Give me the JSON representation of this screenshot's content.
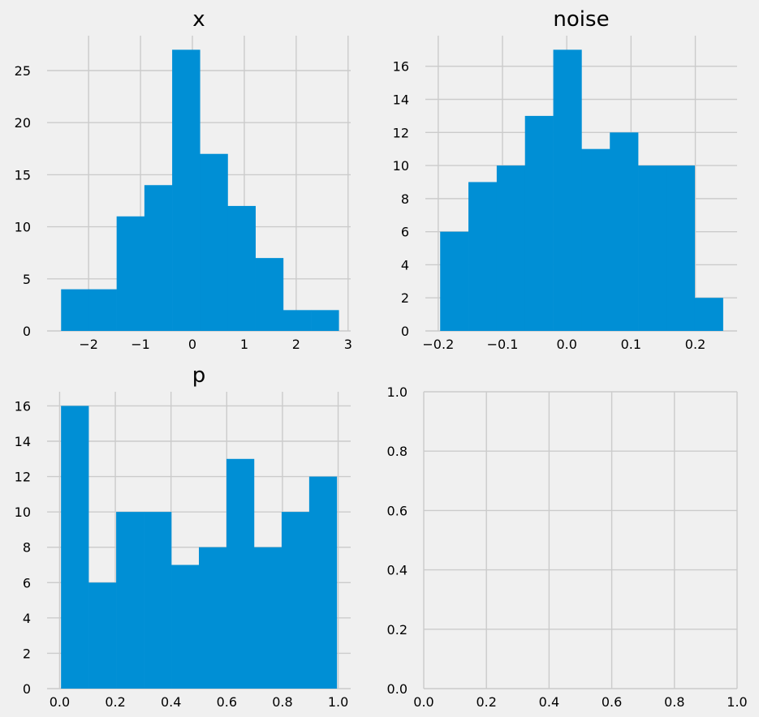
{
  "colors": {
    "background": "#f0f0f0",
    "bar": "#008fd5",
    "grid": "#cbcbcb"
  },
  "chart_data": [
    {
      "type": "bar",
      "title": "x",
      "bin_edges": [
        -2.53,
        -1.995,
        -1.46,
        -0.925,
        -0.39,
        0.145,
        0.68,
        1.215,
        1.75,
        2.285,
        2.82
      ],
      "values": [
        4,
        4,
        11,
        14,
        27,
        17,
        12,
        7,
        2,
        2
      ],
      "xlim": [
        -2.8,
        3.05
      ],
      "ylim": [
        0,
        28.35
      ],
      "xticks": [
        -2,
        -1,
        0,
        1,
        2,
        3
      ],
      "xtick_labels": [
        "−2",
        "−1",
        "0",
        "1",
        "2",
        "3"
      ],
      "yticks": [
        0,
        5,
        10,
        15,
        20,
        25
      ],
      "ytick_labels": [
        "0",
        "5",
        "10",
        "15",
        "20",
        "25"
      ],
      "grid": true
    },
    {
      "type": "bar",
      "title": "noise",
      "bin_edges": [
        -0.197,
        -0.153,
        -0.109,
        -0.065,
        -0.021,
        0.023,
        0.067,
        0.111,
        0.155,
        0.199,
        0.243
      ],
      "values": [
        6,
        9,
        10,
        13,
        17,
        11,
        12,
        10,
        10,
        2
      ],
      "xlim": [
        -0.22,
        0.265
      ],
      "ylim": [
        0,
        17.85
      ],
      "xticks": [
        -0.2,
        -0.1,
        0.0,
        0.1,
        0.2
      ],
      "xtick_labels": [
        "−0.2",
        "−0.1",
        "0.0",
        "0.1",
        "0.2"
      ],
      "yticks": [
        0,
        2,
        4,
        6,
        8,
        10,
        12,
        14,
        16
      ],
      "ytick_labels": [
        "0",
        "2",
        "4",
        "6",
        "8",
        "10",
        "12",
        "14",
        "16"
      ],
      "grid": true
    },
    {
      "type": "bar",
      "title": "p",
      "bin_edges": [
        0.005,
        0.104,
        0.203,
        0.302,
        0.401,
        0.5,
        0.599,
        0.698,
        0.797,
        0.896,
        0.995
      ],
      "values": [
        16,
        6,
        10,
        10,
        7,
        8,
        13,
        8,
        10,
        12
      ],
      "xlim": [
        -0.045,
        1.045
      ],
      "ylim": [
        0,
        16.8
      ],
      "xticks": [
        0.0,
        0.2,
        0.4,
        0.6,
        0.8,
        1.0
      ],
      "xtick_labels": [
        "0.0",
        "0.2",
        "0.4",
        "0.6",
        "0.8",
        "1.0"
      ],
      "yticks": [
        0,
        2,
        4,
        6,
        8,
        10,
        12,
        14,
        16
      ],
      "ytick_labels": [
        "0",
        "2",
        "4",
        "6",
        "8",
        "10",
        "12",
        "14",
        "16"
      ],
      "grid": true
    },
    {
      "type": "bar",
      "title": "",
      "bin_edges": [],
      "values": [],
      "xlim": [
        0,
        1
      ],
      "ylim": [
        0,
        1
      ],
      "xticks": [
        0.0,
        0.2,
        0.4,
        0.6,
        0.8,
        1.0
      ],
      "xtick_labels": [
        "0.0",
        "0.2",
        "0.4",
        "0.6",
        "0.8",
        "1.0"
      ],
      "yticks": [
        0.0,
        0.2,
        0.4,
        0.6,
        0.8,
        1.0
      ],
      "ytick_labels": [
        "0.0",
        "0.2",
        "0.4",
        "0.6",
        "0.8",
        "1.0"
      ],
      "grid": true
    }
  ]
}
